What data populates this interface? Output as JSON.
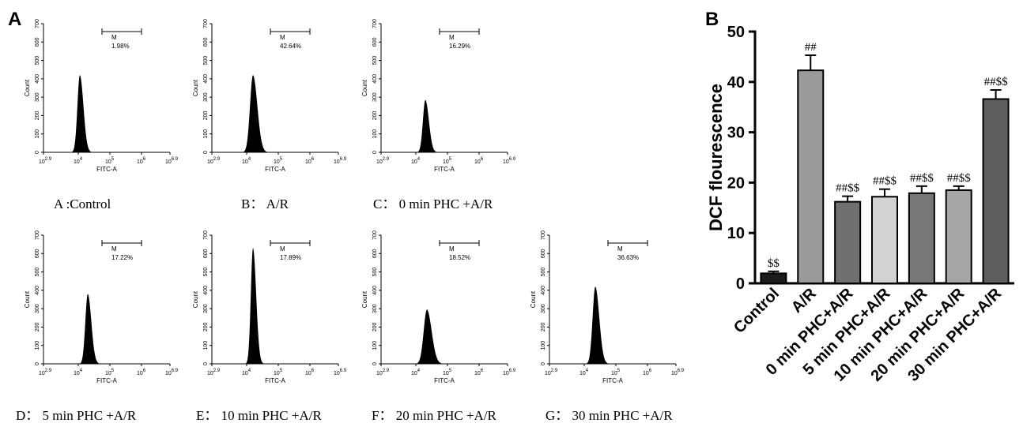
{
  "panel_a_letter": "A",
  "panel_b_letter": "B",
  "chart_data": [
    {
      "type": "histogram",
      "panels": [
        {
          "caption": "A :Control",
          "gate_label": "M",
          "gate_percent": "1.98%",
          "peak_log": 4.05,
          "peak_count": 420,
          "width": 0.09
        },
        {
          "caption": "B： A/R",
          "gate_label": "M",
          "gate_percent": "42.64%",
          "peak_log": 4.2,
          "peak_count": 420,
          "width": 0.11
        },
        {
          "caption": "C： 0 min PHC +A/R",
          "gate_label": "M",
          "gate_percent": "16.29%",
          "peak_log": 4.3,
          "peak_count": 285,
          "width": 0.09
        },
        {
          "caption": "D： 5 min PHC +A/R",
          "gate_label": "M",
          "gate_percent": "17.22%",
          "peak_log": 4.3,
          "peak_count": 380,
          "width": 0.09
        },
        {
          "caption": "E： 10 min PHC +A/R",
          "gate_label": "M",
          "gate_percent": "17.89%",
          "peak_log": 4.2,
          "peak_count": 630,
          "width": 0.08
        },
        {
          "caption": "F： 20 min PHC +A/R",
          "gate_label": "M",
          "gate_percent": "18.52%",
          "peak_log": 4.35,
          "peak_count": 295,
          "width": 0.12
        },
        {
          "caption": "G： 30 min PHC +A/R",
          "gate_label": "M",
          "gate_percent": "36.63%",
          "peak_log": 4.35,
          "peak_count": 420,
          "width": 0.1
        }
      ],
      "xlabel": "FITC-A",
      "ylabel": "Count",
      "ylim": [
        0,
        700
      ],
      "yticks": [
        0,
        100,
        200,
        300,
        400,
        500,
        600,
        700
      ],
      "x_log_range": [
        2.9,
        6.9
      ],
      "gate_log_range": [
        4.75,
        6.0
      ],
      "xtick_labels": [
        {
          "base": "10",
          "exp": "2.9"
        },
        {
          "base": "10",
          "exp": "4"
        },
        {
          "base": "10",
          "exp": "5"
        },
        {
          "base": "10",
          "exp": "6"
        },
        {
          "base": "10",
          "exp": "6.9"
        }
      ]
    },
    {
      "type": "bar",
      "categories": [
        "Control",
        "A/R",
        "0 min PHC+A/R",
        "5 min PHC+A/R",
        "10 min PHC+A/R",
        "20 min PHC+A/R",
        "30 min PHC+A/R"
      ],
      "values": [
        1.98,
        42.3,
        16.2,
        17.2,
        17.9,
        18.5,
        36.6
      ],
      "errors": [
        0.4,
        3.0,
        1.1,
        1.5,
        1.4,
        0.8,
        1.8
      ],
      "annotations": [
        "$$",
        "##",
        "##$$",
        "##$$",
        "##$$",
        "##$$",
        "##$$"
      ],
      "colors": [
        "#1c1c1c",
        "#9a9a9a",
        "#707070",
        "#d2d2d2",
        "#777777",
        "#a6a6a6",
        "#5e5e5e"
      ],
      "ylabel": "DCF flourescence",
      "ylim": [
        0,
        50
      ],
      "yticks": [
        0,
        10,
        20,
        30,
        40,
        50
      ],
      "grid": false
    }
  ]
}
